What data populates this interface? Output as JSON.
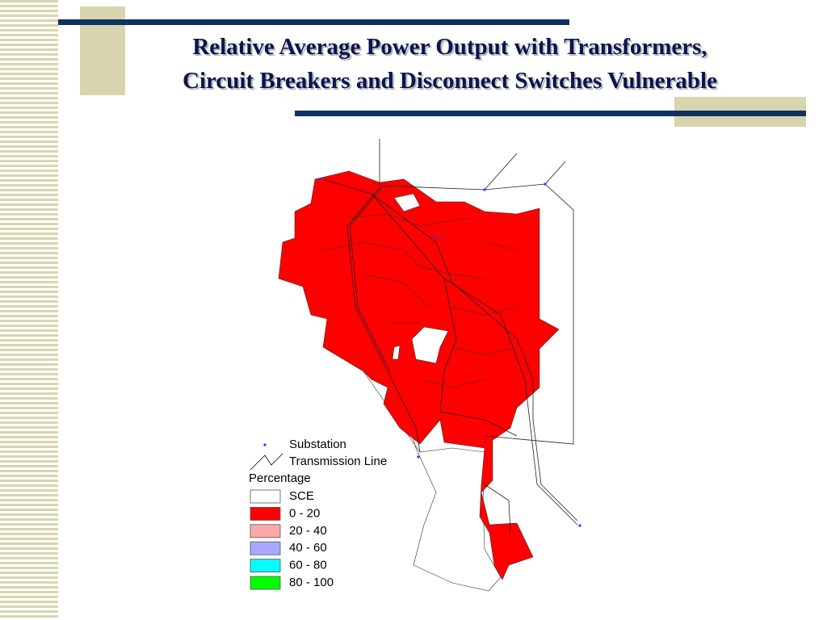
{
  "title": {
    "lines": [
      "Relative Average Power Output with Transformers,",
      "Circuit Breakers and Disconnect Switches Vulnerable"
    ]
  },
  "legend": {
    "symbols": [
      "Substation",
      "Transmission Line"
    ],
    "heading": "Percentage",
    "classes": [
      {
        "label": "SCE",
        "color": "#ffffff"
      },
      {
        "label": "0 - 20",
        "color": "#ff0000"
      },
      {
        "label": "20 - 40",
        "color": "#ffa8a8"
      },
      {
        "label": "40 - 60",
        "color": "#a8a8ff"
      },
      {
        "label": "60 - 80",
        "color": "#00ffff"
      },
      {
        "label": "80 - 100",
        "color": "#00ff00"
      }
    ]
  }
}
